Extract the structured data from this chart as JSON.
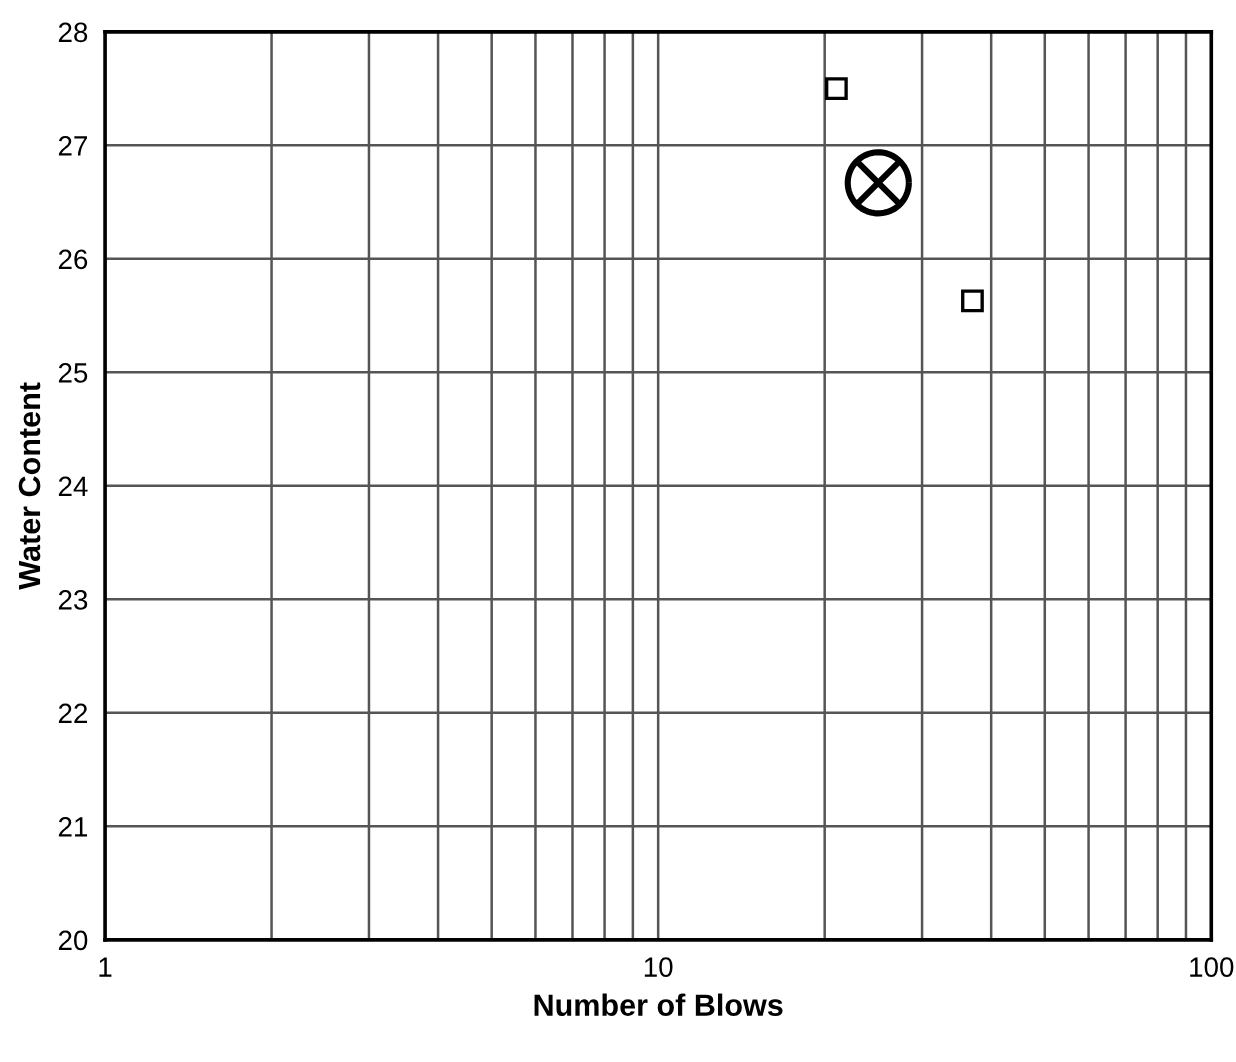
{
  "chart_data": {
    "type": "scatter",
    "xlabel": "Number of Blows",
    "ylabel": "Water Content",
    "log": "x",
    "xlim": [
      1,
      100
    ],
    "ylim": [
      20,
      28
    ],
    "xticks": [
      1,
      {
        "value": 2,
        "label": null
      },
      {
        "value": 3,
        "label": null
      },
      {
        "value": 4,
        "label": null
      },
      {
        "value": 5,
        "label": null
      },
      {
        "value": 6,
        "label": null
      },
      {
        "value": 7,
        "label": null
      },
      {
        "value": 8,
        "label": null
      },
      {
        "value": 9,
        "label": null
      },
      10,
      {
        "value": 20,
        "label": null
      },
      {
        "value": 30,
        "label": null
      },
      {
        "value": 40,
        "label": null
      },
      {
        "value": 50,
        "label": null
      },
      {
        "value": 60,
        "label": null
      },
      {
        "value": 70,
        "label": null
      },
      {
        "value": 80,
        "label": null
      },
      {
        "value": 90,
        "label": null
      },
      100
    ],
    "yticks": [
      20,
      21,
      22,
      23,
      24,
      25,
      26,
      27,
      28
    ],
    "grid": true,
    "series": [
      {
        "color": "#000000",
        "marker": "square",
        "x": [
          21,
          37
        ],
        "values": [
          27.5,
          25.63
        ]
      },
      {
        "color": "#000000",
        "marker": "cross",
        "x": [
          25
        ],
        "values": [
          26.67
        ]
      }
    ]
  }
}
